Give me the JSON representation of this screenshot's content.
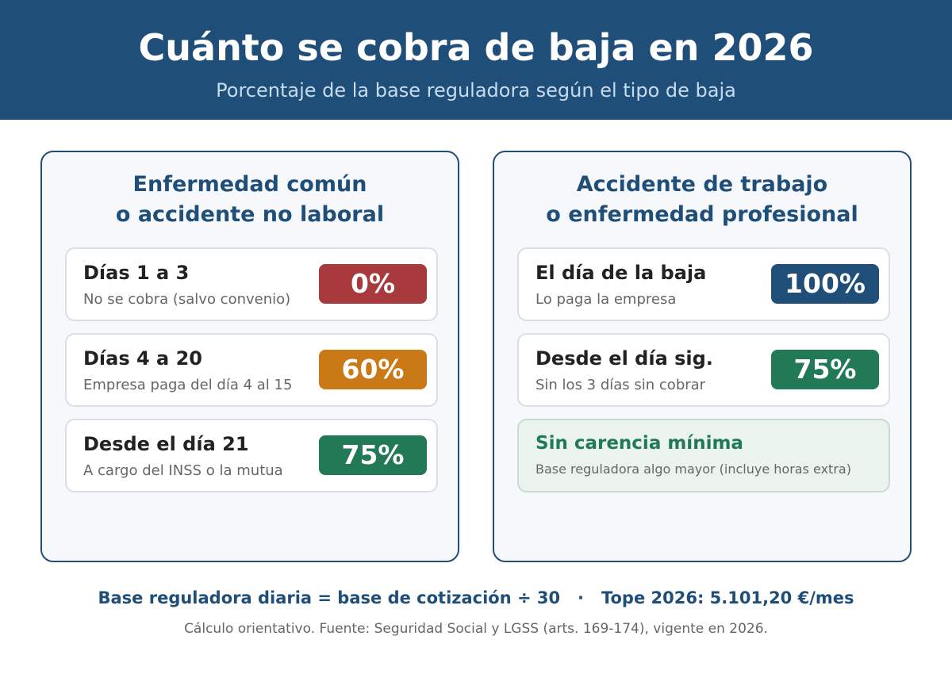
{
  "header": {
    "title": "Cuánto se cobra de baja en 2026",
    "subtitle": "Porcentaje de la base reguladora según el tipo de baja"
  },
  "left_panel": {
    "title_line1": "Enfermedad común",
    "title_line2": "o accidente no laboral",
    "rows": [
      {
        "title": "Días 1 a 3",
        "subtitle": "No se cobra (salvo convenio)",
        "badge": "0%",
        "color": "#a8393d"
      },
      {
        "title": "Días 4 a 20",
        "subtitle": "Empresa paga del día 4 al 15",
        "badge": "60%",
        "color": "#c97a17"
      },
      {
        "title": "Desde el día 21",
        "subtitle": "A cargo del INSS o la mutua",
        "badge": "75%",
        "color": "#217a55"
      }
    ]
  },
  "right_panel": {
    "title_line1": "Accidente de trabajo",
    "title_line2": "o enfermedad profesional",
    "rows": [
      {
        "title": "El día de la baja",
        "subtitle": "Lo paga la empresa",
        "badge": "100%",
        "color": "#1f4e79"
      },
      {
        "title": "Desde el día sig.",
        "subtitle": "Sin los 3 días sin cobrar",
        "badge": "75%",
        "color": "#217a55"
      }
    ],
    "note": {
      "title": "Sin carencia mínima",
      "subtitle": "Base reguladora algo mayor (incluye horas extra)"
    }
  },
  "footer": {
    "formula": "Base reguladora diaria = base de cotización ÷ 30   ·   Tope 2026: 5.101,20 €/mes",
    "source": "Cálculo orientativo. Fuente: Seguridad Social y LGSS (arts. 169-174), vigente en 2026."
  },
  "colors": {
    "primary": "#1f4e79",
    "red": "#a8393d",
    "orange": "#c97a17",
    "green": "#217a55"
  }
}
